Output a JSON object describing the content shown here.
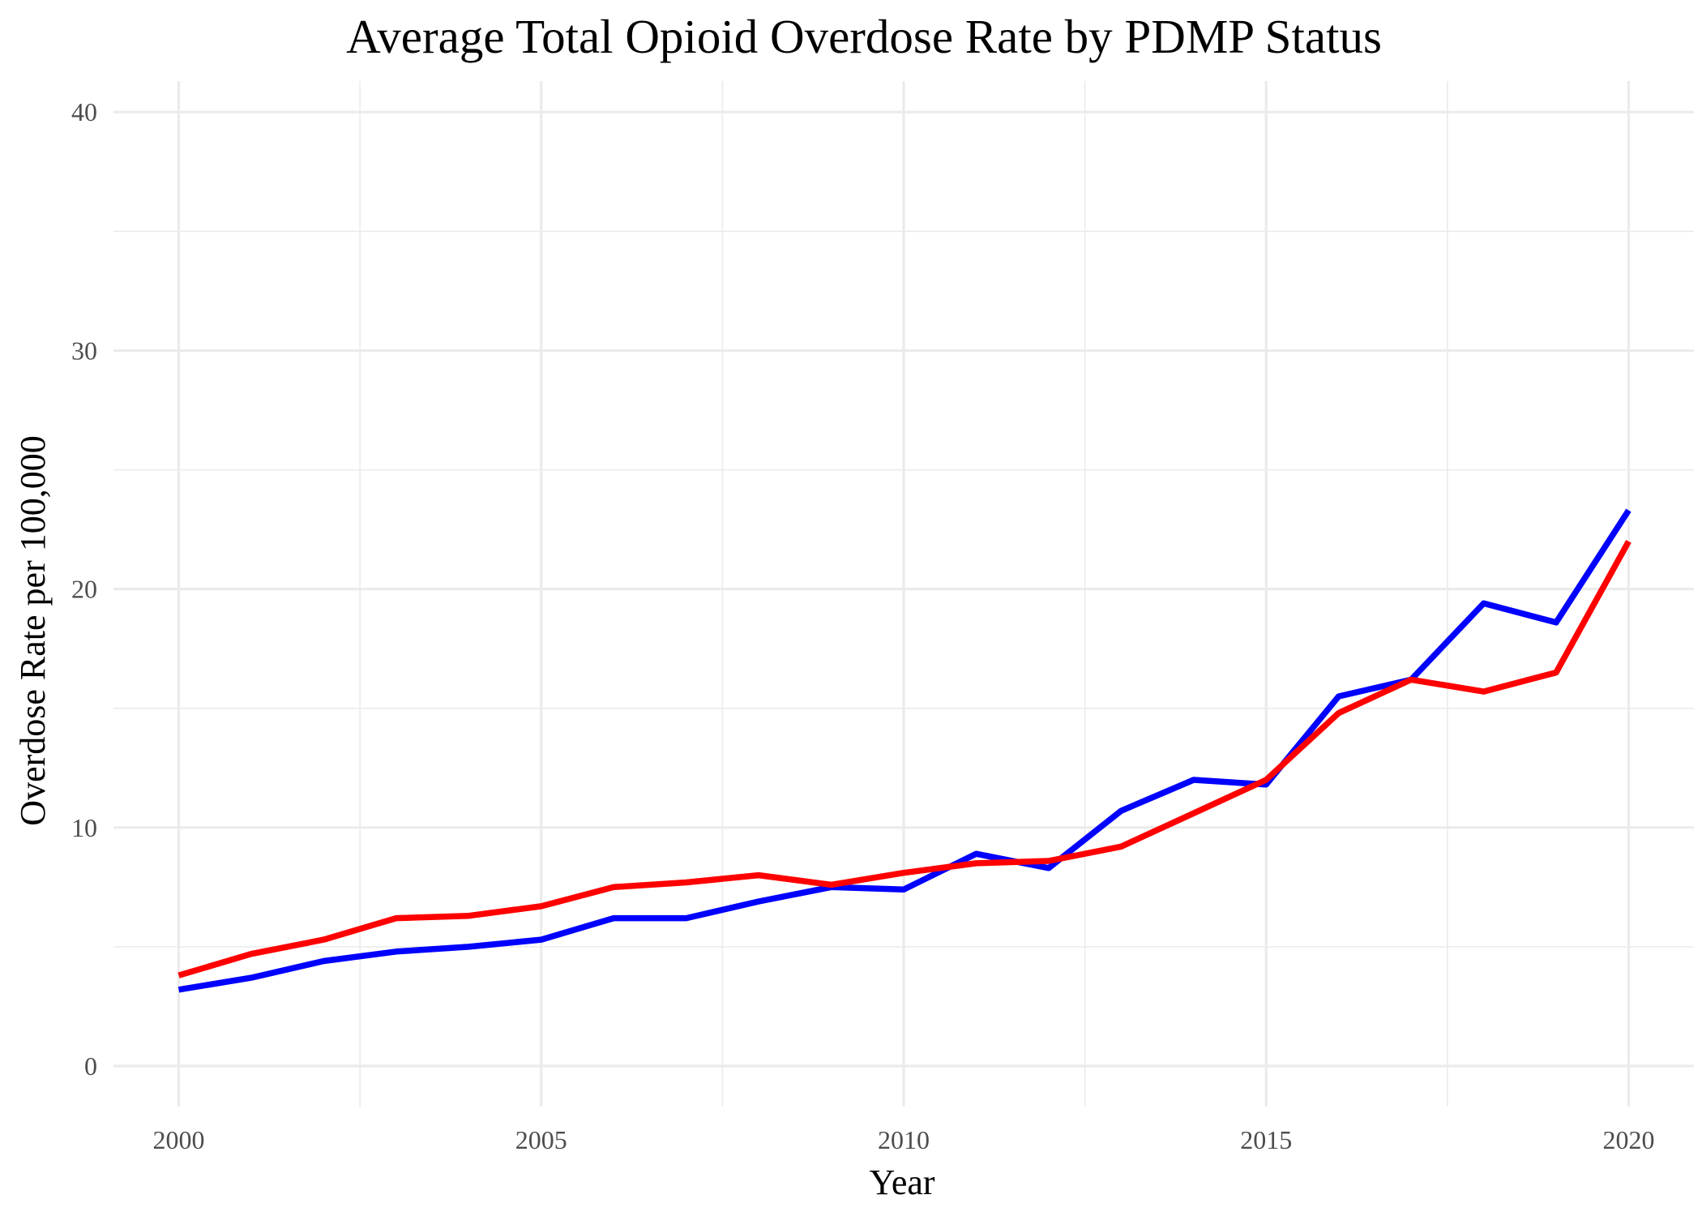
{
  "chart_data": {
    "type": "line",
    "title": "Average Total Opioid Overdose Rate by PDMP Status",
    "xlabel": "Year",
    "ylabel": "Overdose Rate per 100,000",
    "xlim": [
      1999.1,
      2020.9
    ],
    "ylim": [
      -1.7,
      41.3
    ],
    "x_ticks": [
      2000,
      2005,
      2010,
      2015,
      2020
    ],
    "y_ticks": [
      0,
      10,
      20,
      30,
      40
    ],
    "x_tick_labels": [
      "2000",
      "2005",
      "2010",
      "2015",
      "2020"
    ],
    "y_tick_labels": [
      "0",
      "10",
      "20",
      "30",
      "40"
    ],
    "grid": true,
    "legend": "none",
    "x": [
      2000,
      2001,
      2002,
      2003,
      2004,
      2005,
      2006,
      2007,
      2008,
      2009,
      2010,
      2011,
      2012,
      2013,
      2014,
      2015,
      2016,
      2017,
      2018,
      2019,
      2020
    ],
    "series": [
      {
        "color": "#0000ff",
        "values": [
          3.2,
          3.7,
          4.4,
          4.8,
          5.0,
          5.3,
          6.2,
          6.2,
          6.9,
          7.5,
          7.4,
          8.9,
          8.3,
          10.7,
          12.0,
          11.8,
          15.5,
          16.2,
          19.4,
          18.6,
          23.3
        ]
      },
      {
        "color": "#ff0000",
        "values": [
          3.8,
          4.7,
          5.3,
          6.2,
          6.3,
          6.7,
          7.5,
          7.7,
          8.0,
          7.6,
          8.1,
          8.5,
          8.6,
          9.2,
          10.6,
          12.0,
          14.8,
          16.2,
          15.7,
          16.5,
          22.0
        ]
      }
    ]
  }
}
